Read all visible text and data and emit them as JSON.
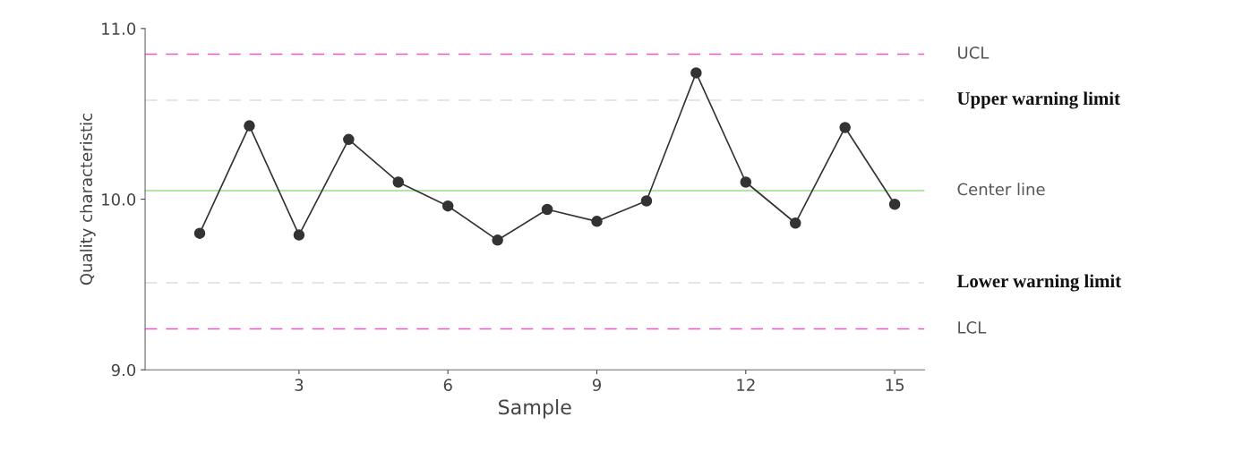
{
  "chart_data": {
    "type": "line",
    "xlabel": "Sample",
    "ylabel": "Quality characteristic",
    "x": [
      1,
      2,
      3,
      4,
      5,
      6,
      7,
      8,
      9,
      10,
      11,
      12,
      13,
      14,
      15
    ],
    "series": [
      {
        "color": "#333333",
        "values": [
          9.8,
          10.43,
          9.79,
          10.35,
          10.1,
          9.96,
          9.76,
          9.94,
          9.87,
          9.99,
          10.74,
          10.1,
          9.86,
          10.42,
          9.97
        ]
      }
    ],
    "xlim": [
      -0.1,
      15.6
    ],
    "xticks": [
      3,
      6,
      9,
      12,
      15
    ],
    "ylim": [
      9.0,
      11.0
    ],
    "yticks": [
      {
        "value": 9,
        "label": "9.0"
      },
      {
        "value": 10,
        "label": "10.0"
      },
      {
        "value": 11,
        "label": "11.0"
      }
    ],
    "marker": "circle",
    "line_style": "solid",
    "grid": false,
    "legend": false,
    "ref_lines": [
      {
        "axis": "y",
        "value": 10.85,
        "label": "UCL",
        "color": "#ee55cc",
        "line_style": "dashed"
      },
      {
        "axis": "y",
        "value": 10.58,
        "label": "Upper warning limit",
        "color": "#dddddd",
        "line_style": "dashed"
      },
      {
        "axis": "y",
        "value": 10.05,
        "label": "Center line",
        "color": "#99dd88",
        "line_style": "solid"
      },
      {
        "axis": "y",
        "value": 9.51,
        "label": "Lower warning limit",
        "color": "#dddddd",
        "line_style": "dashed"
      },
      {
        "axis": "y",
        "value": 9.24,
        "label": "LCL",
        "color": "#ee55cc",
        "line_style": "dashed"
      }
    ]
  }
}
